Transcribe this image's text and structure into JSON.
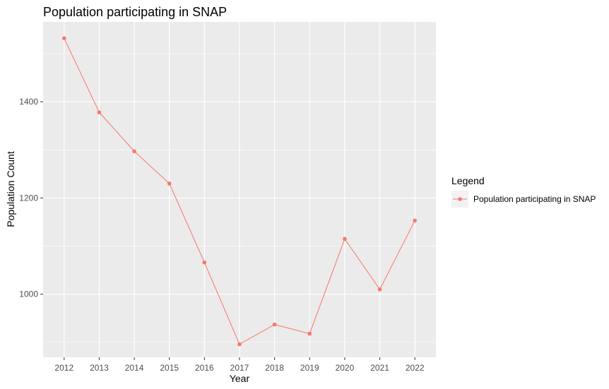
{
  "chart_data": {
    "type": "line",
    "title": "Population participating in SNAP",
    "xlabel": "Year",
    "ylabel": "Population Count",
    "x": [
      2012,
      2013,
      2014,
      2015,
      2016,
      2017,
      2018,
      2019,
      2020,
      2021,
      2022
    ],
    "x_tick_labels": [
      "2012",
      "2013",
      "2014",
      "2015",
      "2016",
      "2017",
      "2018",
      "2019",
      "2020",
      "2021",
      "2022"
    ],
    "y_ticks": [
      1000,
      1200,
      1400
    ],
    "y_tick_labels": [
      "1000",
      "1200",
      "1400"
    ],
    "xlim": [
      2011.4,
      2022.6
    ],
    "ylim": [
      869,
      1566
    ],
    "grid": true,
    "legend": {
      "title": "Legend",
      "placement": "right"
    },
    "series": [
      {
        "name": "Population participating in SNAP",
        "color": "#f8766d",
        "values": [
          1532,
          1378,
          1297,
          1230,
          1066,
          896,
          937,
          918,
          1115,
          1010,
          1153
        ]
      }
    ]
  }
}
